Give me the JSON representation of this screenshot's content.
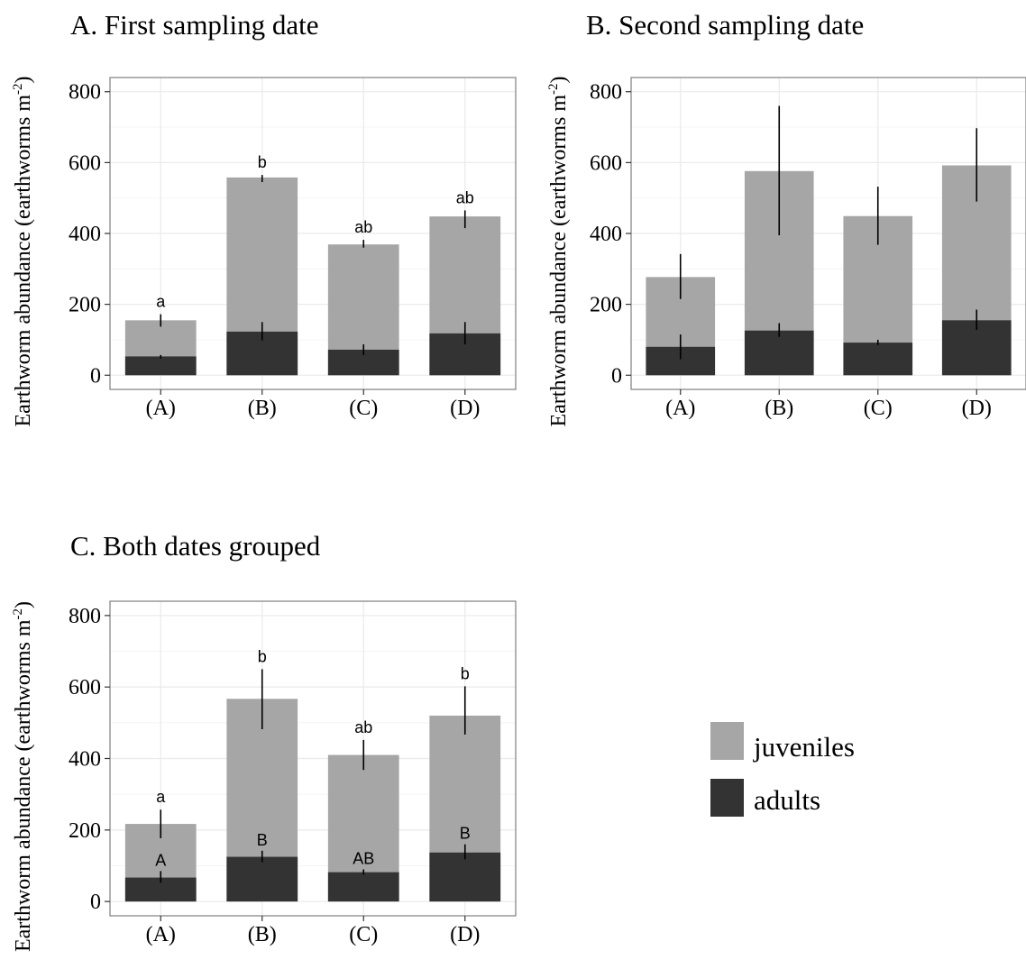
{
  "colors": {
    "juveniles": "#a6a6a6",
    "adults": "#333333",
    "grid_major": "#ebebeb",
    "grid_minor": "#f4f4f4",
    "panel_border": "#7f7f7f"
  },
  "legend": {
    "placement": "right",
    "items": [
      {
        "key": "juveniles",
        "label": "juveniles"
      },
      {
        "key": "adults",
        "label": "adults"
      }
    ]
  },
  "chart_data": [
    {
      "type": "bar",
      "stacked": true,
      "title": "A. First sampling date",
      "ylabel": "Earthworm abundance (earthworms m",
      "ylabel_sup": "-2",
      "ylabel_close": ")",
      "ylim": [
        -40,
        840
      ],
      "yticks": [
        "0",
        "200",
        "400",
        "600",
        "800"
      ],
      "grid": true,
      "categories": [
        "(A)",
        "(B)",
        "(C)",
        "(D)"
      ],
      "series": [
        {
          "name": "adults",
          "values": [
            53,
            123,
            72,
            118
          ],
          "err_low": [
            47,
            98,
            57,
            87
          ],
          "err_high": [
            57,
            150,
            87,
            150
          ]
        },
        {
          "name": "juveniles",
          "values": [
            102,
            435,
            297,
            330
          ],
          "err_low": [
            137,
            545,
            360,
            415
          ],
          "err_high": [
            172,
            565,
            382,
            465
          ]
        }
      ],
      "group_labels_total": [
        "a",
        "b",
        "ab",
        "ab"
      ],
      "group_labels_adults": [
        "",
        "",
        "",
        ""
      ]
    },
    {
      "type": "bar",
      "stacked": true,
      "title": "B. Second sampling date",
      "ylabel": "Earthworm abundance (earthworms m",
      "ylabel_sup": "-2",
      "ylabel_close": ")",
      "ylim": [
        -40,
        840
      ],
      "yticks": [
        "0",
        "200",
        "400",
        "600",
        "800"
      ],
      "grid": true,
      "categories": [
        "(A)",
        "(B)",
        "(C)",
        "(D)"
      ],
      "series": [
        {
          "name": "adults",
          "values": [
            80,
            126,
            92,
            155
          ],
          "err_low": [
            45,
            108,
            85,
            128
          ],
          "err_high": [
            115,
            147,
            100,
            185
          ]
        },
        {
          "name": "juveniles",
          "values": [
            197,
            450,
            357,
            437
          ],
          "err_low": [
            215,
            395,
            368,
            490
          ],
          "err_high": [
            342,
            760,
            532,
            697
          ]
        }
      ],
      "group_labels_total": [
        "",
        "",
        "",
        ""
      ],
      "group_labels_adults": [
        "",
        "",
        "",
        ""
      ]
    },
    {
      "type": "bar",
      "stacked": true,
      "title": "C. Both dates grouped",
      "ylabel": "Earthworm abundance (earthworms m",
      "ylabel_sup": "-2",
      "ylabel_close": ")",
      "ylim": [
        -40,
        840
      ],
      "yticks": [
        "0",
        "200",
        "400",
        "600",
        "800"
      ],
      "grid": true,
      "categories": [
        "(A)",
        "(B)",
        "(C)",
        "(D)"
      ],
      "series": [
        {
          "name": "adults",
          "values": [
            67,
            125,
            82,
            137
          ],
          "err_low": [
            52,
            110,
            75,
            118
          ],
          "err_high": [
            85,
            142,
            90,
            160
          ]
        },
        {
          "name": "juveniles",
          "values": [
            150,
            442,
            328,
            383
          ],
          "err_low": [
            177,
            482,
            368,
            467
          ],
          "err_high": [
            257,
            650,
            452,
            602
          ]
        }
      ],
      "group_labels_total": [
        "a",
        "b",
        "ab",
        "b"
      ],
      "group_labels_adults": [
        "A",
        "B",
        "AB",
        "B"
      ]
    }
  ]
}
